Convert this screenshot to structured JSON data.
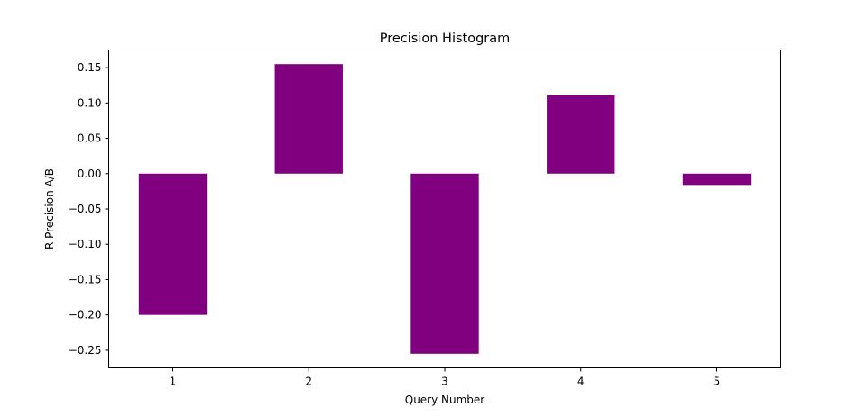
{
  "chart_data": {
    "type": "bar",
    "title": "Precision Histogram",
    "xlabel": "Query Number",
    "ylabel": "R Precision A/B",
    "categories": [
      "1",
      "2",
      "3",
      "4",
      "5"
    ],
    "values": [
      -0.2,
      0.155,
      -0.255,
      0.111,
      -0.016
    ],
    "ylim": [
      -0.275,
      0.175
    ],
    "yticks": [
      0.15,
      0.1,
      0.05,
      0.0,
      -0.05,
      -0.1,
      -0.15,
      -0.2,
      -0.25
    ],
    "ytick_labels": [
      "0.15",
      "0.10",
      "0.05",
      "0.00",
      "−0.05",
      "−0.10",
      "−0.15",
      "−0.20",
      "−0.25"
    ],
    "bar_color": "#800080",
    "grid": false,
    "legend": "none"
  }
}
